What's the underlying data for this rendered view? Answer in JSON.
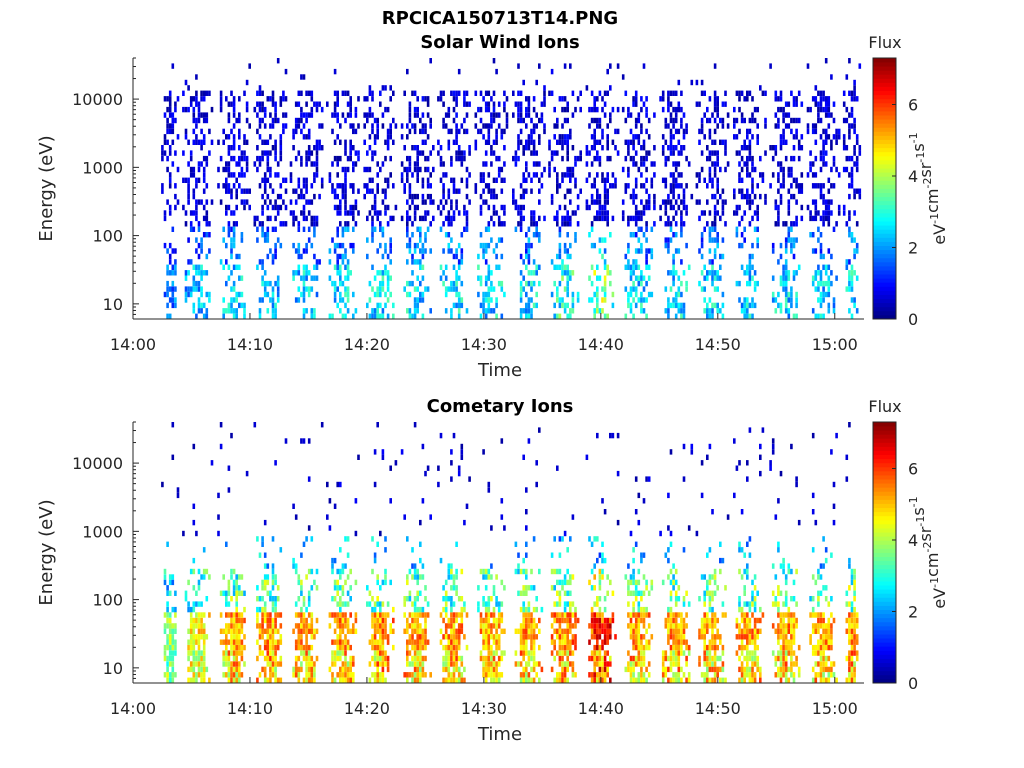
{
  "figure_title": "RPCICA150713T14.PNG",
  "chart_data": [
    {
      "type": "heatmap",
      "title": "Solar Wind Ions",
      "xlabel": "Time",
      "ylabel": "Energy (eV)",
      "x_ticks": [
        "14:00",
        "14:10",
        "14:20",
        "14:30",
        "14:40",
        "14:50",
        "15:00"
      ],
      "x_range_minutes": [
        0,
        62.5
      ],
      "y_ticks": [
        "10",
        "100",
        "1000",
        "10000"
      ],
      "y_scale": "log",
      "y_range": [
        6,
        40000
      ],
      "colorbar": {
        "title": "Flux",
        "label": "eV^-1 cm^-2 sr^-1 s^-1",
        "ticks": [
          "0",
          "2",
          "4",
          "6"
        ],
        "range": [
          0,
          7.3
        ]
      },
      "colormap": "jet",
      "sweeps_start_minutes": [
        2.4,
        4.2,
        7.2,
        10.3,
        13.4,
        16.5,
        19.7,
        22.9,
        26.0,
        29.2,
        32.4,
        35.5,
        38.7,
        41.8,
        45.0,
        48.1,
        51.3,
        54.4,
        57.6,
        60.7
      ],
      "peak_flux_per_sweep": [
        2.5,
        3.2,
        3.4,
        3.3,
        3.4,
        3.5,
        3.6,
        3.6,
        3.7,
        3.6,
        3.7,
        4.2,
        5.0,
        3.6,
        3.6,
        3.5,
        3.5,
        3.5,
        3.4,
        3.6
      ]
    },
    {
      "type": "heatmap",
      "title": "Cometary Ions",
      "xlabel": "Time",
      "ylabel": "Energy (eV)",
      "x_ticks": [
        "14:00",
        "14:10",
        "14:20",
        "14:30",
        "14:40",
        "14:50",
        "15:00"
      ],
      "x_range_minutes": [
        0,
        62.5
      ],
      "y_ticks": [
        "10",
        "100",
        "1000",
        "10000"
      ],
      "y_scale": "log",
      "y_range": [
        6,
        40000
      ],
      "colorbar": {
        "title": "Flux",
        "label": "eV^-1 cm^-2 sr^-1 s^-1",
        "ticks": [
          "0",
          "2",
          "4",
          "6"
        ],
        "range": [
          0,
          7.3
        ]
      },
      "colormap": "jet",
      "sweeps_start_minutes": [
        2.4,
        4.2,
        7.2,
        10.3,
        13.4,
        16.5,
        19.7,
        22.9,
        26.0,
        29.2,
        32.4,
        35.5,
        38.7,
        41.8,
        45.0,
        48.1,
        51.3,
        54.4,
        57.6,
        60.7
      ],
      "peak_flux_per_sweep": [
        4.5,
        5.4,
        6.0,
        6.1,
        6.0,
        6.1,
        6.2,
        6.1,
        6.1,
        6.0,
        6.1,
        6.2,
        7.0,
        6.1,
        6.1,
        6.0,
        6.1,
        6.1,
        6.0,
        6.2
      ]
    }
  ]
}
